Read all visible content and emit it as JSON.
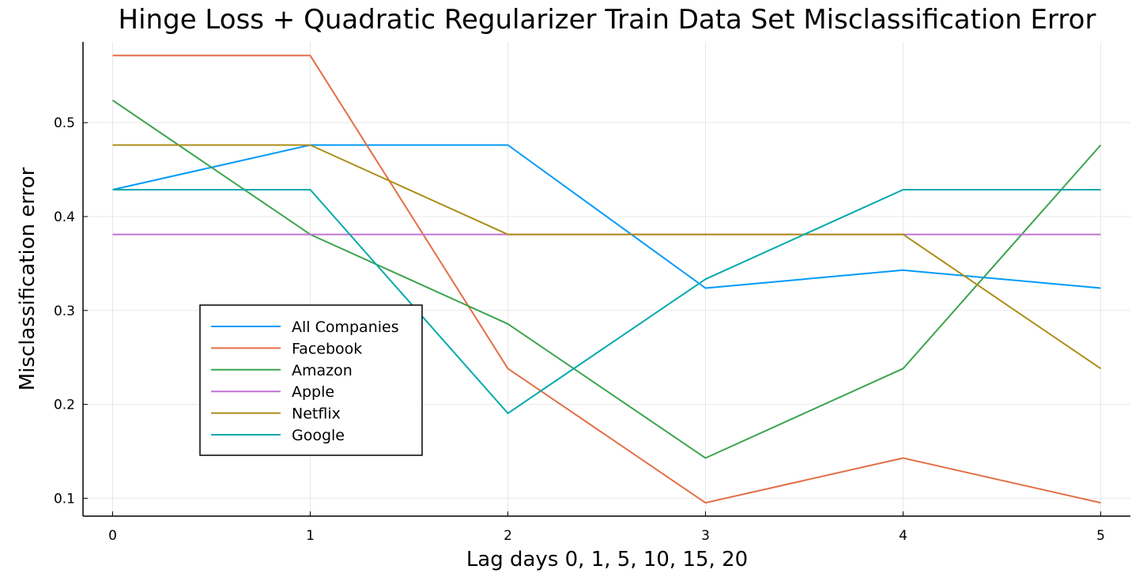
{
  "chart_data": {
    "type": "line",
    "title": "Hinge Loss + Quadratic Regularizer Train Data Set Misclassification Error",
    "xlabel": "Lag days 0, 1, 5, 10, 15, 20",
    "ylabel": "Misclassification error",
    "x": [
      0,
      1,
      2,
      3,
      4,
      5
    ],
    "xlim": [
      -0.15,
      5.15
    ],
    "ylim": [
      0.081,
      0.586
    ],
    "xticks": [
      0,
      1,
      2,
      3,
      4,
      5
    ],
    "yticks": [
      0.1,
      0.2,
      0.3,
      0.4,
      0.5
    ],
    "grid": true,
    "legend_position": "center-left",
    "series": [
      {
        "name": "All Companies",
        "color": "#009af9",
        "values": [
          0.4286,
          0.4762,
          0.4762,
          0.3238,
          0.3429,
          0.3238
        ]
      },
      {
        "name": "Facebook",
        "color": "#e26f46",
        "values": [
          0.5714,
          0.5714,
          0.2381,
          0.0952,
          0.1429,
          0.0952
        ]
      },
      {
        "name": "Amazon",
        "color": "#3da44d",
        "values": [
          0.5238,
          0.381,
          0.2857,
          0.1429,
          0.2381,
          0.4762
        ]
      },
      {
        "name": "Apple",
        "color": "#c271d2",
        "values": [
          0.381,
          0.381,
          0.381,
          0.381,
          0.381,
          0.381
        ]
      },
      {
        "name": "Netflix",
        "color": "#ac8d18",
        "values": [
          0.4762,
          0.4762,
          0.381,
          0.381,
          0.381,
          0.2381
        ]
      },
      {
        "name": "Google",
        "color": "#00a9ad",
        "values": [
          0.4286,
          0.4286,
          0.1905,
          0.3333,
          0.4286,
          0.4286
        ]
      }
    ]
  }
}
